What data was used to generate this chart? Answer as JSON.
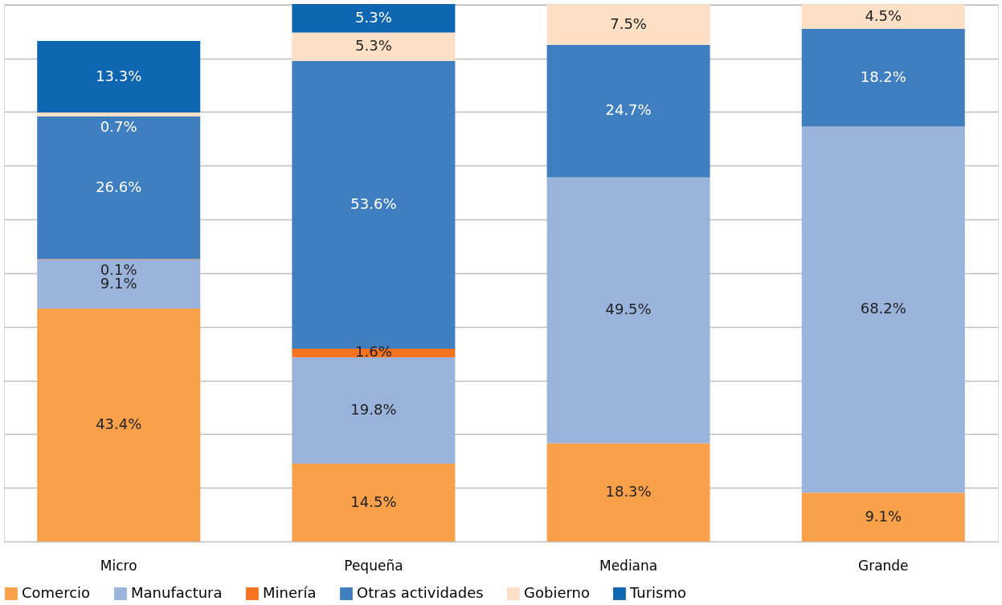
{
  "chart_data": {
    "type": "bar",
    "stacked": true,
    "categories": [
      "Micro",
      "Pequeña",
      "Mediana",
      "Grande"
    ],
    "series": [
      {
        "name": "Comercio",
        "color": "#f9a04a",
        "values": [
          43.4,
          14.5,
          18.3,
          9.1
        ],
        "value_labels": [
          "43.4%",
          "14.5%",
          "18.3%",
          "9.1%"
        ]
      },
      {
        "name": "Manufactura",
        "color": "#9ab3db",
        "values": [
          9.1,
          19.8,
          49.5,
          68.2
        ],
        "value_labels": [
          "9.1%",
          "19.8%",
          "49.5%",
          "68.2%"
        ]
      },
      {
        "name": "Minería",
        "color": "#f5731f",
        "values": [
          0.1,
          1.6,
          null,
          null
        ],
        "value_labels": [
          "0.1%",
          "1.6%",
          null,
          null
        ]
      },
      {
        "name": "Otras actividades",
        "color": "#3f7fc0",
        "values": [
          26.6,
          53.6,
          24.7,
          18.2
        ],
        "value_labels": [
          "26.6%",
          "53.6%",
          "24.7%",
          "18.2%"
        ]
      },
      {
        "name": "Gobierno",
        "color": "#fde0c5",
        "values": [
          0.7,
          5.3,
          7.5,
          4.5
        ],
        "value_labels": [
          "0.7%",
          "5.3%",
          "7.5%",
          "4.5%"
        ]
      },
      {
        "name": "Turismo",
        "color": "#0e65b0",
        "values": [
          13.3,
          5.3,
          null,
          null
        ],
        "value_labels": [
          "13.3%",
          "5.3%",
          null,
          null
        ]
      }
    ],
    "grid": "y",
    "tick_labels": "x",
    "legend": "bottom"
  }
}
